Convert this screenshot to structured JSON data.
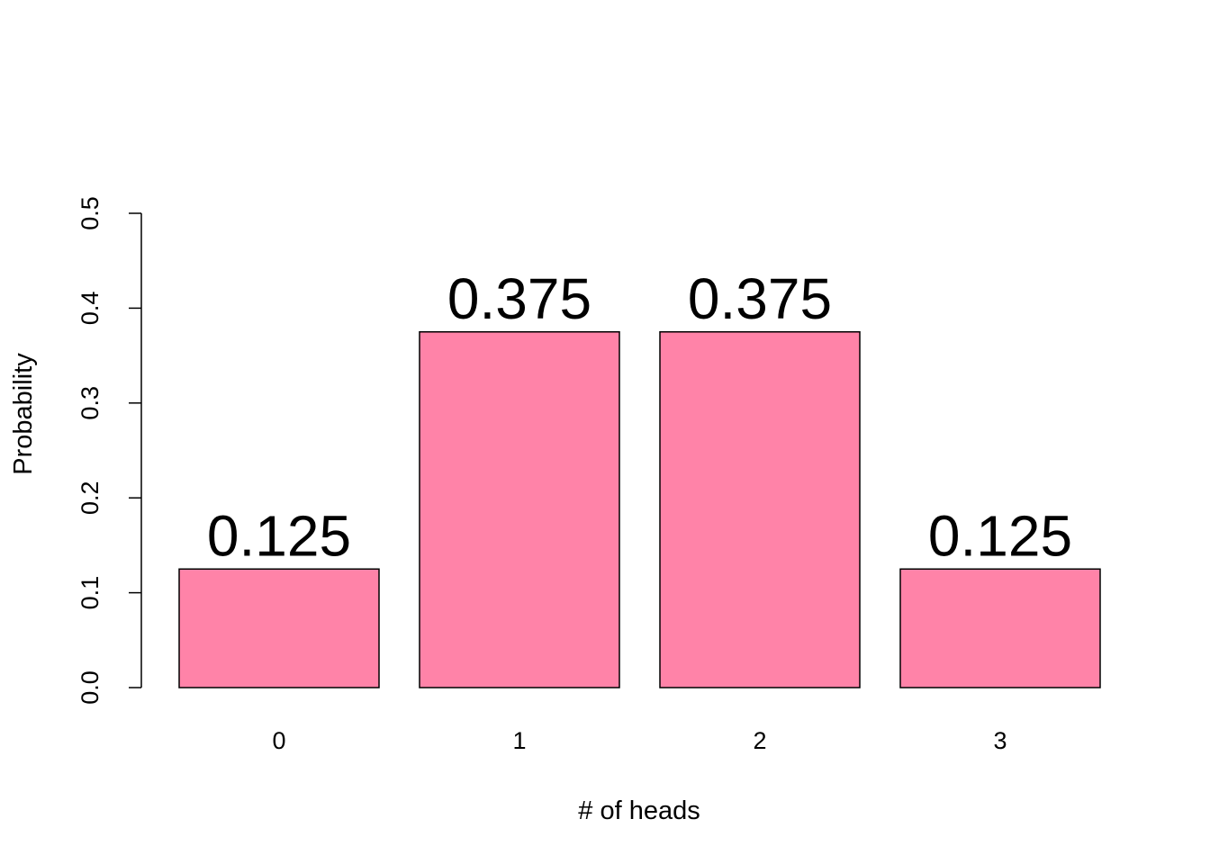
{
  "chart_data": {
    "type": "bar",
    "title": "",
    "xlabel": "# of heads",
    "ylabel": "Probability",
    "categories": [
      "0",
      "1",
      "2",
      "3"
    ],
    "values": [
      0.125,
      0.375,
      0.375,
      0.125
    ],
    "data_labels": [
      "0.125",
      "0.375",
      "0.375",
      "0.125"
    ],
    "ylim": [
      0,
      0.5
    ],
    "yticks": [
      0.0,
      0.1,
      0.2,
      0.3,
      0.4,
      0.5
    ],
    "ytick_labels": [
      "0.0",
      "0.1",
      "0.2",
      "0.3",
      "0.4",
      "0.5"
    ],
    "grid": false,
    "legend": "none",
    "bar_color": "#FF83A8",
    "bar_edge_color": "#000000"
  }
}
